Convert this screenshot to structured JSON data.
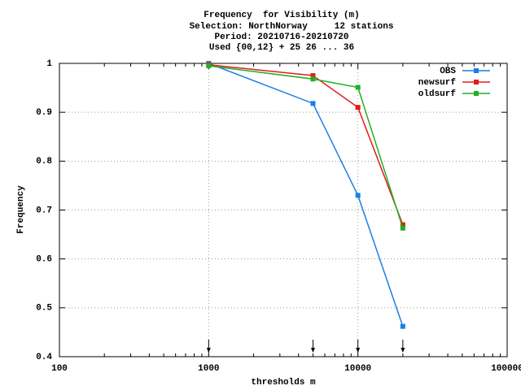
{
  "chart_data": {
    "type": "line",
    "title_lines": [
      "Frequency  for Visibility (m)",
      "Selection: NorthNorway     12 stations",
      "Period: 20210716-20210720",
      "Used {00,12} + 25 26 ... 36"
    ],
    "x_label": "thresholds m",
    "y_label": "Frequency",
    "x": [
      1000,
      5000,
      10000,
      20000
    ],
    "series": [
      {
        "name": "OBS",
        "color": "#1a7fe6",
        "values": [
          1.0,
          0.918,
          0.73,
          0.462
        ]
      },
      {
        "name": "newsurf",
        "color": "#e01b1b",
        "values": [
          0.997,
          0.975,
          0.91,
          0.67
        ]
      },
      {
        "name": "oldsurf",
        "color": "#22b022",
        "values": [
          0.995,
          0.968,
          0.951,
          0.663
        ]
      }
    ],
    "xlim": [
      100,
      100000
    ],
    "xticks": [
      100,
      1000,
      10000,
      100000
    ],
    "xlog": true,
    "ylim": [
      0.4,
      1
    ],
    "yticks": [
      0.4,
      0.5,
      0.6,
      0.7,
      0.8,
      0.9,
      1
    ],
    "grid": true,
    "legend": "top-right"
  }
}
